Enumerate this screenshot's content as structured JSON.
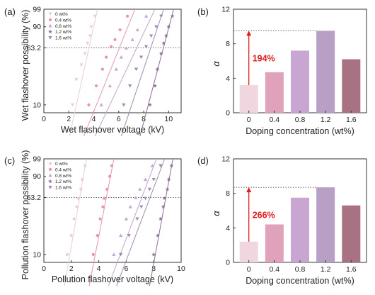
{
  "chart_data": [
    {
      "id": "a",
      "panel_label": "(a)",
      "type": "scatter",
      "xlabel": "Wet flashover voltage (kV)",
      "ylabel": "Wet flashover possibility (%)",
      "xlim": [
        0,
        11
      ],
      "x_ticks": [
        "0",
        "2",
        "4",
        "6",
        "8",
        "10"
      ],
      "y_scale": "weibull-probability",
      "y_ticks": [
        "10",
        "63.2",
        "90",
        "99"
      ],
      "reference_line": 63.2,
      "grid": false,
      "legend_position": "top-left",
      "series": [
        {
          "name": "0 wt%",
          "color": "#e8cfd8",
          "marker": "down-triangle",
          "points": [
            [
              2.3,
              10
            ],
            [
              2.6,
              25
            ],
            [
              3.0,
              40
            ],
            [
              3.3,
              55
            ],
            [
              3.5,
              70
            ],
            [
              3.7,
              80
            ],
            [
              3.8,
              90
            ],
            [
              4.1,
              97
            ]
          ],
          "fit": [
            [
              2.05,
              3
            ],
            [
              4.3,
              99
            ]
          ]
        },
        {
          "name": "0.4 wt%",
          "color": "#e695ad",
          "marker": "circle",
          "points": [
            [
              3.6,
              10
            ],
            [
              4.2,
              20
            ],
            [
              4.7,
              35
            ],
            [
              5.0,
              50
            ],
            [
              5.4,
              65
            ],
            [
              5.7,
              75
            ],
            [
              6.1,
              87
            ],
            [
              6.7,
              97
            ]
          ],
          "fit": [
            [
              3.2,
              3
            ],
            [
              7.3,
              99
            ]
          ]
        },
        {
          "name": "0.8 wt%",
          "color": "#c4a3d1",
          "marker": "up-triangle",
          "points": [
            [
              4.6,
              10
            ],
            [
              5.3,
              20
            ],
            [
              5.8,
              35
            ],
            [
              6.2,
              50
            ],
            [
              6.6,
              63
            ],
            [
              7.1,
              75
            ],
            [
              7.5,
              87
            ],
            [
              8.2,
              97
            ]
          ],
          "fit": [
            [
              4.1,
              3
            ],
            [
              8.9,
              99
            ]
          ]
        },
        {
          "name": "1.2 wt%",
          "color": "#8e6f98",
          "marker": "star",
          "points": [
            [
              8.5,
              10
            ],
            [
              8.9,
              20
            ],
            [
              9.1,
              35
            ],
            [
              9.4,
              55
            ],
            [
              9.6,
              70
            ],
            [
              9.8,
              80
            ],
            [
              10.0,
              90
            ],
            [
              10.3,
              97
            ]
          ],
          "fit": [
            [
              7.7,
              3
            ],
            [
              10.4,
              99
            ]
          ]
        },
        {
          "name": "1.6 wt%",
          "color": "#a08ab3",
          "marker": "down-triangle",
          "points": [
            [
              6.4,
              10
            ],
            [
              6.9,
              20
            ],
            [
              7.4,
              35
            ],
            [
              7.8,
              50
            ],
            [
              8.2,
              65
            ],
            [
              8.6,
              80
            ],
            [
              9.0,
              90
            ],
            [
              9.4,
              97
            ]
          ],
          "fit": [
            [
              6.2,
              3
            ],
            [
              9.6,
              99
            ]
          ]
        }
      ]
    },
    {
      "id": "b",
      "panel_label": "(b)",
      "type": "bar",
      "xlabel": "Doping concentration (wt%)",
      "ylabel": "α",
      "ylim": [
        0,
        12
      ],
      "y_ticks": [
        "0",
        "4",
        "8",
        "12"
      ],
      "categories": [
        "0",
        "0.4",
        "0.8",
        "1.2",
        "1.6"
      ],
      "values": [
        3.2,
        4.7,
        7.2,
        9.5,
        6.2
      ],
      "bar_colors": [
        "#efd6df",
        "#e0a1bb",
        "#c9a6d1",
        "#b89fc6",
        "#a87283"
      ],
      "annotation": {
        "text": "194%",
        "color": "#e01b1b",
        "from": 3.2,
        "to": 9.5
      }
    },
    {
      "id": "c",
      "panel_label": "(c)",
      "type": "scatter",
      "xlabel": "Pollution flashover voltage (kV)",
      "ylabel": "Pollution flashover possibility (%)",
      "xlim": [
        0,
        10
      ],
      "x_ticks": [
        "0",
        "2",
        "4",
        "6",
        "8",
        "10"
      ],
      "y_scale": "weibull-probability",
      "y_ticks": [
        "10",
        "63.2",
        "90",
        "99"
      ],
      "reference_line": 63.2,
      "grid": false,
      "legend_position": "top-left",
      "series": [
        {
          "name": "0 wt%",
          "color": "#e8cfd8",
          "marker": "circle",
          "points": [
            [
              1.7,
              10
            ],
            [
              2.0,
              20
            ],
            [
              2.2,
              35
            ],
            [
              2.4,
              50
            ],
            [
              2.5,
              62
            ],
            [
              2.7,
              75
            ],
            [
              2.8,
              87
            ],
            [
              3.0,
              97
            ]
          ],
          "fit": [
            [
              1.5,
              3
            ],
            [
              3.1,
              99
            ]
          ]
        },
        {
          "name": "0.4 wt%",
          "color": "#e695ad",
          "marker": "circle",
          "points": [
            [
              3.6,
              10
            ],
            [
              3.9,
              20
            ],
            [
              4.1,
              35
            ],
            [
              4.3,
              50
            ],
            [
              4.4,
              62
            ],
            [
              4.6,
              75
            ],
            [
              4.8,
              90
            ],
            [
              4.95,
              97
            ]
          ],
          "fit": [
            [
              3.3,
              3
            ],
            [
              5.1,
              99
            ]
          ]
        },
        {
          "name": "0.8 wt%",
          "color": "#c4a3d1",
          "marker": "up-triangle",
          "points": [
            [
              5.1,
              10
            ],
            [
              5.6,
              20
            ],
            [
              6.0,
              35
            ],
            [
              6.3,
              50
            ],
            [
              6.7,
              63
            ],
            [
              7.0,
              75
            ],
            [
              7.4,
              87
            ],
            [
              7.9,
              97
            ]
          ],
          "fit": [
            [
              4.7,
              3
            ],
            [
              8.2,
              99
            ]
          ]
        },
        {
          "name": "1.2 wt%",
          "color": "#8e6f98",
          "marker": "star",
          "points": [
            [
              8.0,
              10
            ],
            [
              8.3,
              20
            ],
            [
              8.5,
              35
            ],
            [
              8.7,
              50
            ],
            [
              8.8,
              62
            ],
            [
              9.0,
              75
            ],
            [
              9.1,
              87
            ],
            [
              9.3,
              97
            ]
          ],
          "fit": [
            [
              7.7,
              3
            ],
            [
              9.4,
              99
            ]
          ]
        },
        {
          "name": "1.6 wt%",
          "color": "#a08ab3",
          "marker": "down-triangle",
          "points": [
            [
              5.6,
              10
            ],
            [
              6.2,
              20
            ],
            [
              6.8,
              35
            ],
            [
              7.1,
              50
            ],
            [
              7.4,
              62
            ],
            [
              7.7,
              75
            ],
            [
              8.0,
              87
            ],
            [
              8.5,
              97
            ]
          ],
          "fit": [
            [
              5.3,
              3
            ],
            [
              8.8,
              99
            ]
          ]
        }
      ]
    },
    {
      "id": "d",
      "panel_label": "(d)",
      "type": "bar",
      "xlabel": "Doping concentration (wt%)",
      "ylabel": "α",
      "ylim": [
        0,
        12
      ],
      "y_ticks": [
        "0",
        "4",
        "8",
        "12"
      ],
      "categories": [
        "0",
        "0.4",
        "0.8",
        "1.2",
        "1.6"
      ],
      "values": [
        2.4,
        4.4,
        7.5,
        8.7,
        6.6
      ],
      "bar_colors": [
        "#efd6df",
        "#e0a1bb",
        "#c9a6d1",
        "#b89fc6",
        "#a87283"
      ],
      "annotation": {
        "text": "266%",
        "color": "#e01b1b",
        "from": 2.4,
        "to": 8.7
      }
    }
  ]
}
